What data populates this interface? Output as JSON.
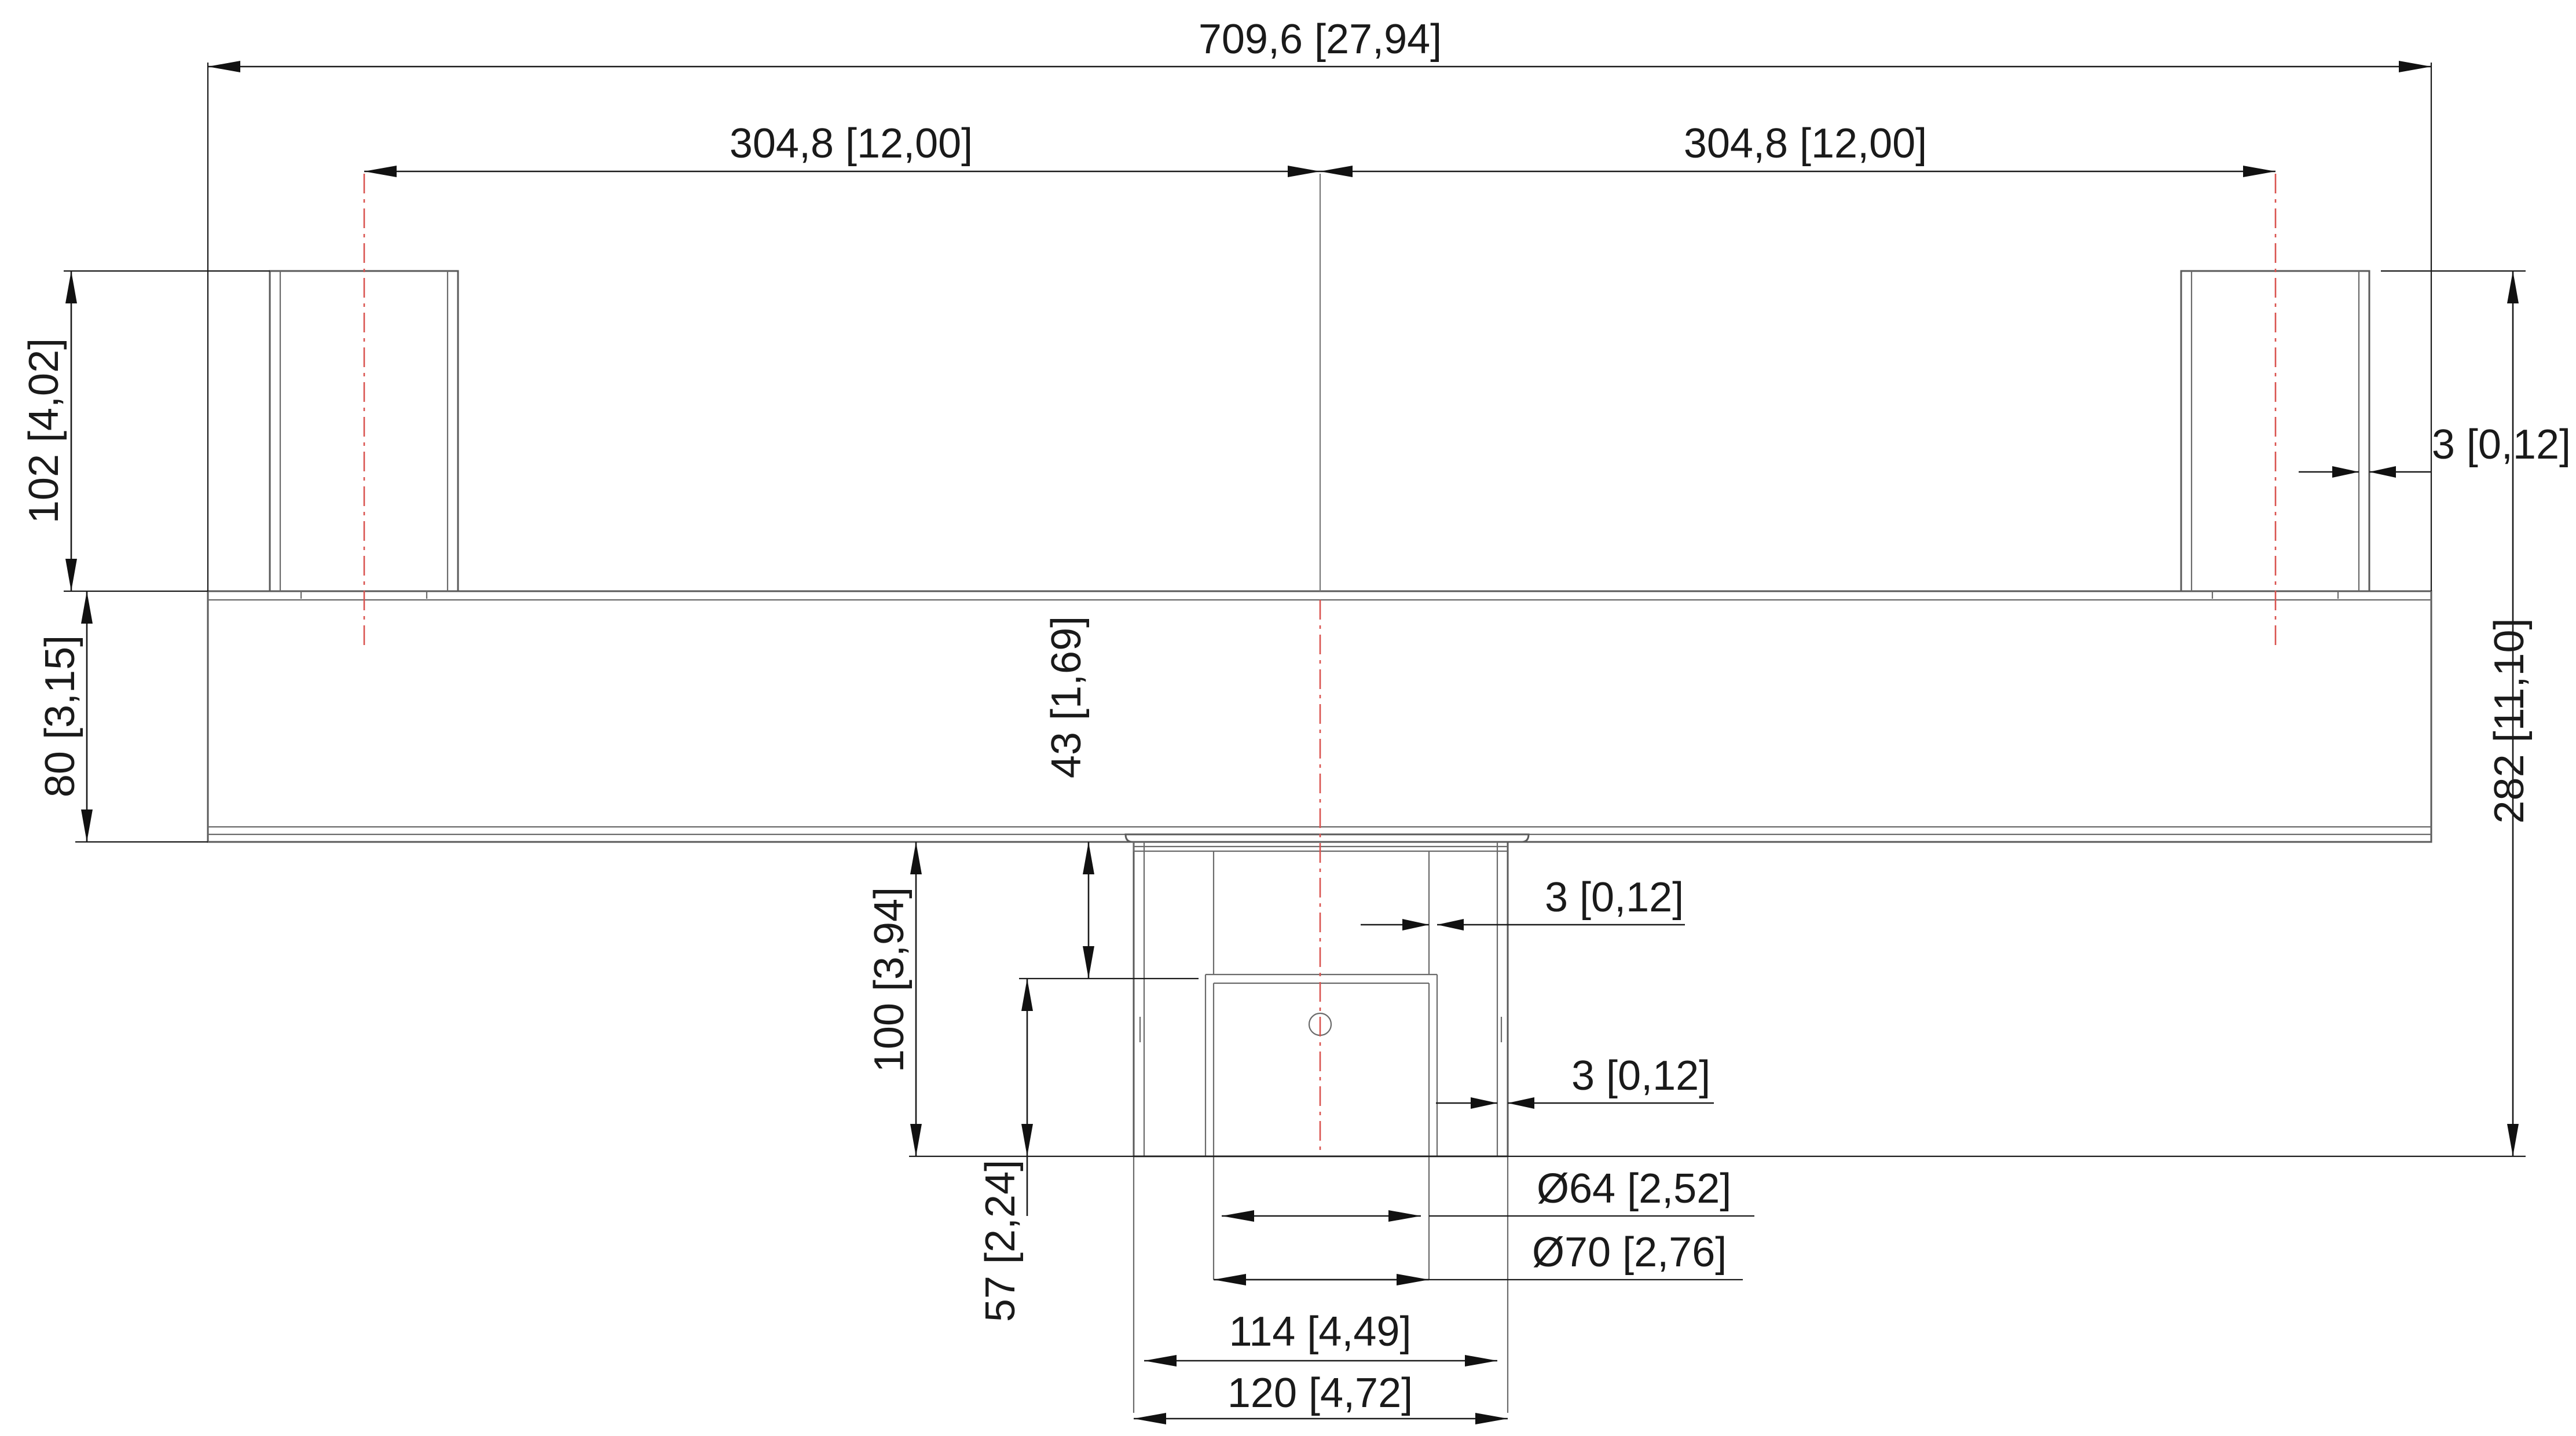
{
  "drawing": {
    "accent_colors": {
      "line": "#5a5a5a",
      "dimension": "#1a1a1a",
      "centerline": "#d9534f"
    },
    "dimensions": {
      "overall_width": "709,6 [27,94]",
      "left_spacing": "304,8 [12,00]",
      "right_spacing": "304,8 [12,00]",
      "left_post_height": "102 [4,02]",
      "right_wall_thickness": "3 [0,12]",
      "beam_height": "80 [3,15]",
      "overall_height": "282 [11,10]",
      "collar_offset": "43 [1,69]",
      "inner_wall_thickness": "3 [0,12]",
      "socket_height": "100 [3,94]",
      "outer_wall_thickness": "3 [0,12]",
      "socket_lower_height": "57 [2,24]",
      "inner_diameter": "Ø64 [2,52]",
      "outer_diameter_70": "Ø70 [2,76]",
      "width_114": "114 [4,49]",
      "width_120": "120 [4,72]"
    }
  }
}
